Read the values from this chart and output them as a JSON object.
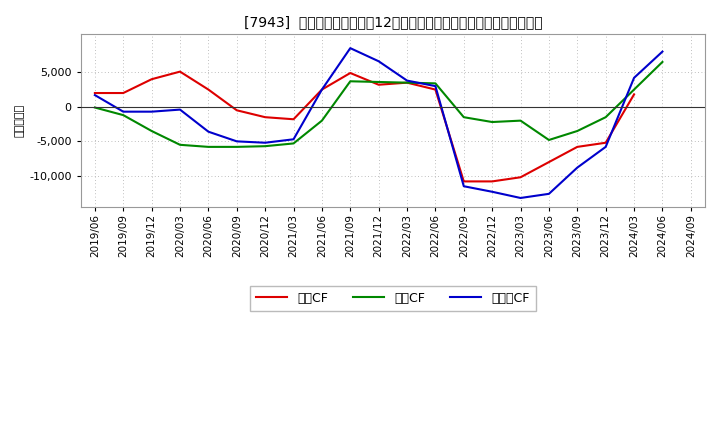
{
  "title": "[7943]  キャッシュフローの12か月移動合計の対前年同期増減額の推移",
  "ylabel": "（百万円）",
  "x_labels": [
    "2019/06",
    "2019/09",
    "2019/12",
    "2020/03",
    "2020/06",
    "2020/09",
    "2020/12",
    "2021/03",
    "2021/06",
    "2021/09",
    "2021/12",
    "2022/03",
    "2022/06",
    "2022/09",
    "2022/12",
    "2023/03",
    "2023/06",
    "2023/09",
    "2023/12",
    "2024/03",
    "2024/06",
    "2024/09"
  ],
  "eigyo_cf": [
    2000,
    2000,
    4000,
    5100,
    2500,
    -500,
    -1500,
    -1800,
    2500,
    4900,
    3200,
    3500,
    2500,
    -10800,
    -10800,
    -10200,
    -8000,
    -5800,
    -5200,
    1800,
    null,
    null
  ],
  "toshi_cf": [
    -100,
    -1200,
    -3500,
    -5500,
    -5800,
    -5800,
    -5700,
    -5300,
    -2000,
    3700,
    3600,
    3500,
    3400,
    -1500,
    -2200,
    -2000,
    -4800,
    -3500,
    -1500,
    2500,
    6500,
    null
  ],
  "free_cf": [
    1700,
    -700,
    -700,
    -400,
    -3600,
    -5000,
    -5200,
    -4700,
    2500,
    8500,
    6600,
    3800,
    3000,
    -11500,
    -12300,
    -13200,
    -12600,
    -8800,
    -5800,
    4200,
    8000,
    null
  ],
  "eigyo_color": "#dd0000",
  "toshi_color": "#008800",
  "free_color": "#0000cc",
  "bg_color": "#ffffff",
  "plot_bg_color": "#ffffff",
  "grid_color": "#aaaaaa",
  "ylim": [
    -14500,
    10500
  ],
  "yticks": [
    -10000,
    -5000,
    0,
    5000
  ],
  "legend_labels": [
    "営業CF",
    "投資CF",
    "フリーCF"
  ]
}
